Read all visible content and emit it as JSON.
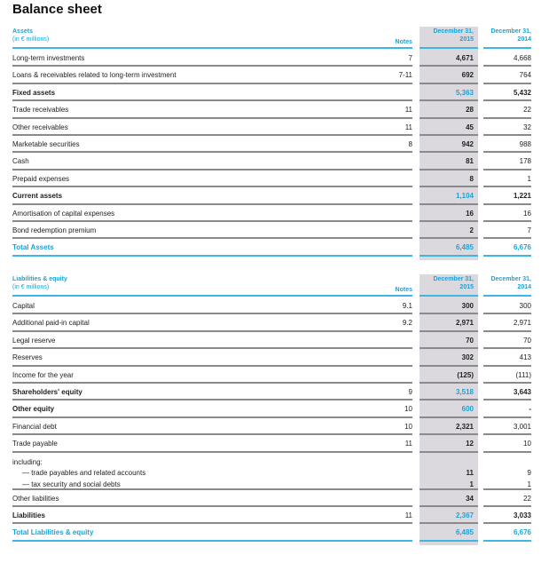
{
  "title": "Balance sheet",
  "assets": {
    "heading": "Assets",
    "unit": "(in € millions)",
    "notes_label": "Notes",
    "col_2015": [
      "December 31,",
      "2015"
    ],
    "col_2014": [
      "December 31,",
      "2014"
    ],
    "rows": [
      {
        "label": "Long-term investments",
        "notes": "7",
        "y2015": "4,671",
        "y2014": "4,668"
      },
      {
        "label": "Loans & receivables related to long-term investment",
        "notes": "7-11",
        "y2015": "692",
        "y2014": "764"
      },
      {
        "label": "Fixed assets",
        "notes": "",
        "y2015": "5,363",
        "y2014": "5,432",
        "style": "bold blue15"
      },
      {
        "label": "Trade receivables",
        "notes": "11",
        "y2015": "28",
        "y2014": "22"
      },
      {
        "label": "Other receivables",
        "notes": "11",
        "y2015": "45",
        "y2014": "32"
      },
      {
        "label": "Marketable securities",
        "notes": "8",
        "y2015": "942",
        "y2014": "988"
      },
      {
        "label": "Cash",
        "notes": "",
        "y2015": "81",
        "y2014": "178"
      },
      {
        "label": "Prepaid expenses",
        "notes": "",
        "y2015": "8",
        "y2014": "1"
      },
      {
        "label": "Current assets",
        "notes": "",
        "y2015": "1,104",
        "y2014": "1,221",
        "style": "bold blue15"
      },
      {
        "label": "Amortisation of capital expenses",
        "notes": "",
        "y2015": "16",
        "y2014": "16"
      },
      {
        "label": "Bond redemption premium",
        "notes": "",
        "y2015": "2",
        "y2014": "7"
      },
      {
        "label": "Total Assets",
        "notes": "",
        "y2015": "6,485",
        "y2014": "6,676",
        "style": "bold blue15 total"
      }
    ]
  },
  "liabilities": {
    "heading": "Liabilities & equity",
    "unit": "(in € millions)",
    "notes_label": "Notes",
    "col_2015": [
      "December 31,",
      "2015"
    ],
    "col_2014": [
      "December 31,",
      "2014"
    ],
    "rows": [
      {
        "label": "Capital",
        "notes": "9.1",
        "y2015": "300",
        "y2014": "300"
      },
      {
        "label": "Additional paid-in capital",
        "notes": "9.2",
        "y2015": "2,971",
        "y2014": "2,971"
      },
      {
        "label": "Legal reserve",
        "notes": "",
        "y2015": "70",
        "y2014": "70"
      },
      {
        "label": "Reserves",
        "notes": "",
        "y2015": "302",
        "y2014": "413"
      },
      {
        "label": "Income for the year",
        "notes": "",
        "y2015": "(125)",
        "y2014": "(111)"
      },
      {
        "label": "Shareholders' equity",
        "notes": "9",
        "y2015": "3,518",
        "y2014": "3,643",
        "style": "bold blue15"
      },
      {
        "label": "Other equity",
        "notes": "10",
        "y2015": "600",
        "y2014": "-",
        "style": "bold blue15"
      },
      {
        "label": "Financial debt",
        "notes": "10",
        "y2015": "2,321",
        "y2014": "3,001"
      },
      {
        "label": "Trade payable",
        "notes": "11",
        "y2015": "12",
        "y2014": "10"
      },
      {
        "label": "including:",
        "sublines": [
          {
            "label": "— trade payables and related accounts",
            "y2015": "11",
            "y2014": "9"
          },
          {
            "label": "— tax security and social debts",
            "y2015": "1",
            "y2014": "1"
          }
        ]
      },
      {
        "label": "Other liabilities",
        "notes": "",
        "y2015": "34",
        "y2014": "22"
      },
      {
        "label": "Liabilities",
        "notes": "11",
        "y2015": "2,367",
        "y2014": "3,033",
        "style": "bold blue15"
      },
      {
        "label": "Total Liabilities & equity",
        "notes": "",
        "y2015": "6,485",
        "y2014": "6,676",
        "style": "bold blue15 total"
      }
    ]
  },
  "colors": {
    "accent": "#1aa3d9",
    "shade": "#dcd9de"
  }
}
